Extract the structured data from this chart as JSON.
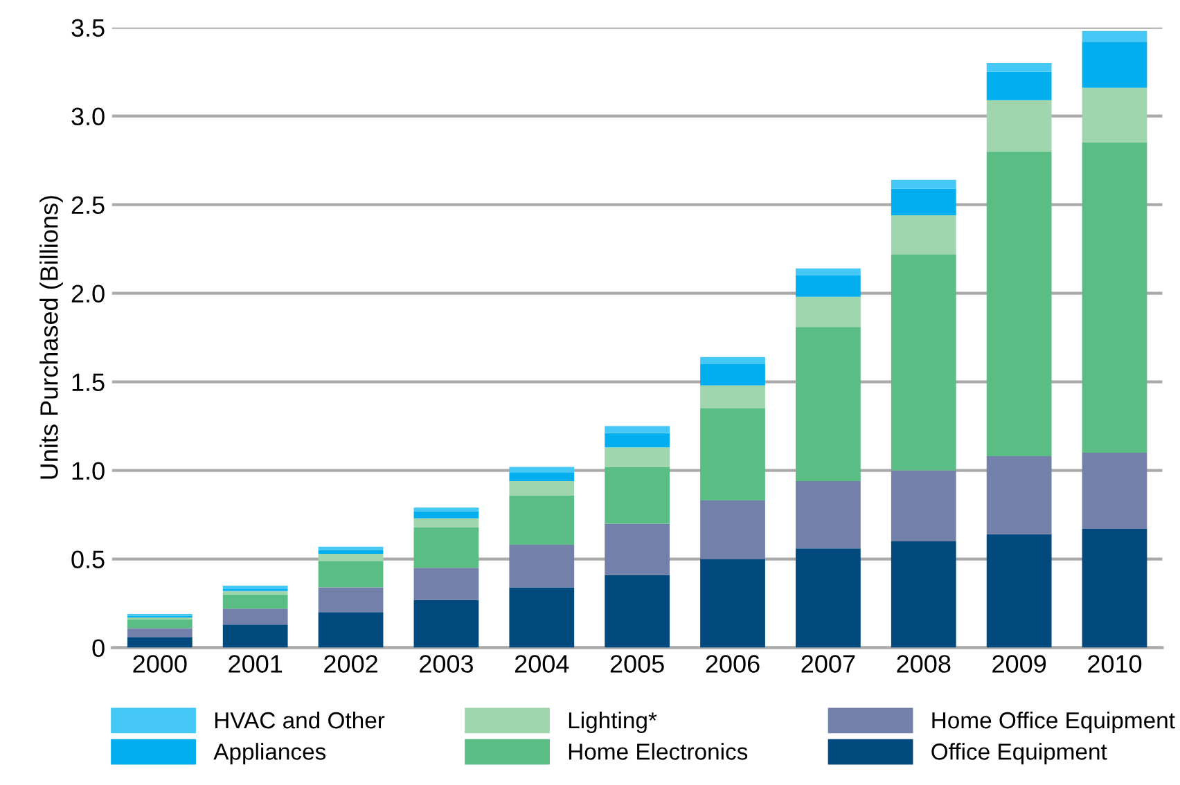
{
  "chart_data": {
    "type": "bar",
    "stacked": true,
    "ylabel": "Units Purchased (Billions)",
    "categories": [
      "2000",
      "2001",
      "2002",
      "2003",
      "2004",
      "2005",
      "2006",
      "2007",
      "2008",
      "2009",
      "2010"
    ],
    "series": [
      {
        "name": "Office Equipment",
        "color": "#02497e",
        "values": [
          0.06,
          0.13,
          0.2,
          0.27,
          0.34,
          0.41,
          0.5,
          0.56,
          0.6,
          0.64,
          0.67
        ]
      },
      {
        "name": "Home Office Equipment",
        "color": "#7381aa",
        "values": [
          0.05,
          0.09,
          0.14,
          0.18,
          0.24,
          0.29,
          0.33,
          0.38,
          0.4,
          0.44,
          0.43
        ]
      },
      {
        "name": "Home Electronics",
        "color": "#5abd84",
        "values": [
          0.05,
          0.08,
          0.15,
          0.23,
          0.28,
          0.32,
          0.52,
          0.87,
          1.22,
          1.72,
          1.75
        ]
      },
      {
        "name": "Lighting*",
        "color": "#a0d6ae",
        "values": [
          0.01,
          0.02,
          0.04,
          0.05,
          0.08,
          0.11,
          0.13,
          0.17,
          0.22,
          0.29,
          0.31
        ]
      },
      {
        "name": "Appliances",
        "color": "#03aeef",
        "values": [
          0.01,
          0.01,
          0.02,
          0.04,
          0.05,
          0.08,
          0.12,
          0.12,
          0.15,
          0.16,
          0.26
        ]
      },
      {
        "name": "HVAC and Other",
        "color": "#45c8f5",
        "values": [
          0.01,
          0.02,
          0.02,
          0.02,
          0.03,
          0.04,
          0.04,
          0.04,
          0.05,
          0.05,
          0.06
        ]
      }
    ],
    "ylim": [
      0,
      3.5
    ],
    "yticks": [
      0,
      0.5,
      {
        "value": 1,
        "label": "1.0"
      },
      1.5,
      {
        "value": 2,
        "label": "2.0"
      },
      2.5,
      {
        "value": 3,
        "label": "3.0"
      },
      3.5
    ],
    "grid": "y",
    "legend": "bottom"
  }
}
